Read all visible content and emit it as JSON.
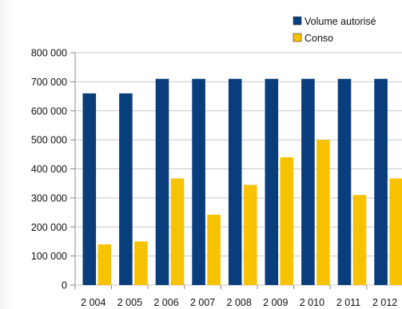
{
  "chart_data": {
    "type": "bar",
    "categories": [
      "2 004",
      "2 005",
      "2 006",
      "2 007",
      "2 008",
      "2 009",
      "2 010",
      "2 011",
      "2 012"
    ],
    "series": [
      {
        "name": "Volume autorisé",
        "color": "#0a3d7c",
        "values": [
          660000,
          660000,
          710000,
          710000,
          710000,
          710000,
          710000,
          710000,
          710000
        ]
      },
      {
        "name": "Conso",
        "color": "#f7c200",
        "values": [
          140000,
          150000,
          367000,
          242000,
          345000,
          440000,
          500000,
          310000,
          367000
        ]
      }
    ],
    "y_ticks": [
      "0",
      "100 000",
      "200 000",
      "300 000",
      "400 000",
      "500 000",
      "600 000",
      "700 000",
      "800 000"
    ],
    "ylim": [
      0,
      800000
    ],
    "title": "",
    "xlabel": "",
    "ylabel": "",
    "grid": true,
    "legend_position": "top-right"
  }
}
